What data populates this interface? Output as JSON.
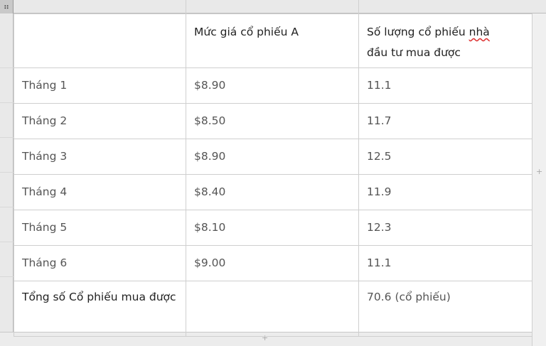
{
  "table": {
    "headers": [
      "",
      "Mức giá cổ phiếu A",
      "Số lượng cổ phiếu",
      "nhà",
      "đầu tư mua được"
    ],
    "rows": [
      {
        "label": "Tháng 1",
        "price": "$8.90",
        "qty": "11.1"
      },
      {
        "label": "Tháng 2",
        "price": "$8.50",
        "qty": "11.7"
      },
      {
        "label": "Tháng 3",
        "price": "$8.90",
        "qty": "12.5"
      },
      {
        "label": "Tháng 4",
        "price": "$8.40",
        "qty": "11.9"
      },
      {
        "label": "Tháng 5",
        "price": "$8.10",
        "qty": "12.3"
      },
      {
        "label": "Tháng 6",
        "price": "$9.00",
        "qty": "11.1"
      }
    ],
    "total": {
      "label": "Tổng số Cổ phiếu mua được",
      "price": "",
      "qty": "70.6 (cổ phiếu)"
    }
  },
  "icons": {
    "handle": "drag-handle-icon",
    "add_row": "plus-icon",
    "add_column": "plus-icon"
  }
}
